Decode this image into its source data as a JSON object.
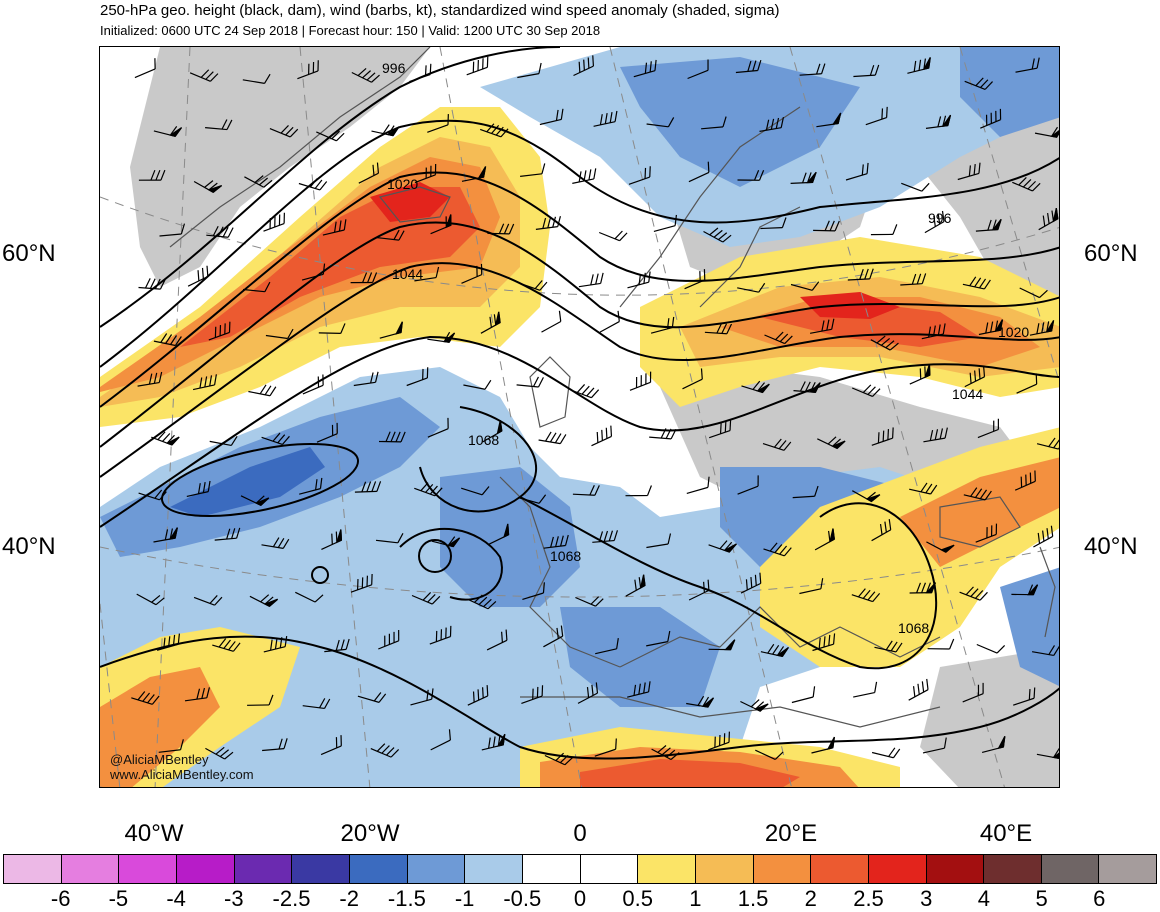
{
  "title": "250-hPa geo. height (black, dam), wind (barbs, kt), standardized wind speed anomaly (shaded, sigma)",
  "subtitle": "Initialized: 0600 UTC 24 Sep 2018 | Forecast hour: 150 | Valid: 1200 UTC 30 Sep 2018",
  "latitude_labels": [
    "60°N",
    "40°N"
  ],
  "longitude_labels": [
    "40°W",
    "20°W",
    "0",
    "20°E",
    "40°E"
  ],
  "contour_labels": [
    "996",
    "1020",
    "1044",
    "1068",
    "996",
    "1020",
    "1044",
    "1068",
    "1068"
  ],
  "credit": {
    "handle": "@AliciaMBentley",
    "website": "www.AliciaMBentley.com"
  },
  "colorbar": {
    "labels": [
      "-6",
      "-5",
      "-4",
      "-3",
      "-2.5",
      "-2",
      "-1.5",
      "-1",
      "-0.5",
      "0",
      "0.5",
      "1",
      "1.5",
      "2",
      "2.5",
      "3",
      "4",
      "5",
      "6"
    ],
    "colors": [
      "#ecb8e6",
      "#e57ee0",
      "#d94adb",
      "#b71cc8",
      "#6b2ab0",
      "#3a39a3",
      "#3b6bbf",
      "#6e9ad6",
      "#a9cbe9",
      "#ffffff",
      "#ffffff",
      "#fbe467",
      "#f5bc55",
      "#f3903f",
      "#ec5a30",
      "#e3241c",
      "#a30f10",
      "#6e2e2e",
      "#6f6565",
      "#a59c9c"
    ]
  },
  "colors": {
    "ocean": "#ffffff",
    "land_gray": "#c7c7c7",
    "coastline": "#555555",
    "contour": "#000000",
    "graticule": "#8a8a8a"
  }
}
